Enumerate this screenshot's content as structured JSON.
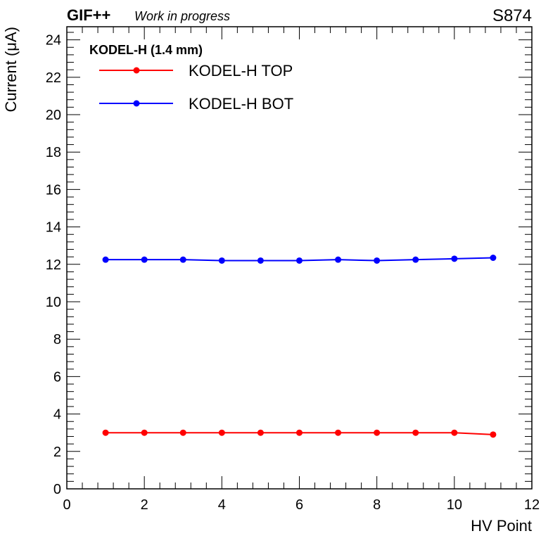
{
  "header": {
    "experiment": "GIF++",
    "status": "Work in progress",
    "label_right": "S874"
  },
  "chart_data": {
    "type": "line",
    "xlabel": "HV Point",
    "ylabel": "Current (μA)",
    "xlim": [
      0,
      12
    ],
    "ylim": [
      0,
      24.7
    ],
    "x_ticks": [
      0,
      2,
      4,
      6,
      8,
      10,
      12
    ],
    "y_ticks": [
      0,
      2,
      4,
      6,
      8,
      10,
      12,
      14,
      16,
      18,
      20,
      22,
      24
    ],
    "grid": false,
    "legend": {
      "title": "KODEL-H (1.4 mm)",
      "placement": "top-left"
    },
    "x": [
      1,
      2,
      3,
      4,
      5,
      6,
      7,
      8,
      9,
      10,
      11
    ],
    "series": [
      {
        "name": "KODEL-H TOP",
        "color": "#ff0000",
        "values": [
          3.0,
          3.0,
          3.0,
          3.0,
          3.0,
          3.0,
          3.0,
          3.0,
          3.0,
          3.0,
          2.9
        ]
      },
      {
        "name": "KODEL-H BOT",
        "color": "#0000ff",
        "values": [
          12.25,
          12.25,
          12.25,
          12.2,
          12.2,
          12.2,
          12.25,
          12.2,
          12.25,
          12.3,
          12.35
        ]
      }
    ]
  }
}
